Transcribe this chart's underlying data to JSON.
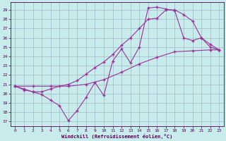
{
  "xlabel": "Windchill (Refroidissement éolien,°C)",
  "xlim": [
    -0.5,
    23.5
  ],
  "ylim": [
    16.5,
    29.8
  ],
  "yticks": [
    17,
    18,
    19,
    20,
    21,
    22,
    23,
    24,
    25,
    26,
    27,
    28,
    29
  ],
  "xticks": [
    0,
    1,
    2,
    3,
    4,
    5,
    6,
    7,
    8,
    9,
    10,
    11,
    12,
    13,
    14,
    15,
    16,
    17,
    18,
    19,
    20,
    21,
    22,
    23
  ],
  "bg_color": "#c8ecec",
  "grid_color": "#a0b8c8",
  "line_color": "#993399",
  "line1_x": [
    0,
    1,
    2,
    3,
    4,
    5,
    6,
    7,
    8,
    9,
    10,
    11,
    12,
    13,
    14,
    15,
    16,
    17,
    18,
    19,
    20,
    21,
    22,
    23
  ],
  "line1_y": [
    20.8,
    20.4,
    20.2,
    19.9,
    19.3,
    18.7,
    17.1,
    18.2,
    19.6,
    21.2,
    19.8,
    23.5,
    24.8,
    23.3,
    25.0,
    29.2,
    29.3,
    29.1,
    28.9,
    26.0,
    25.7,
    26.0,
    25.3,
    24.7
  ],
  "line2_x": [
    0,
    2,
    4,
    6,
    8,
    10,
    12,
    14,
    16,
    18,
    20,
    22,
    23
  ],
  "line2_y": [
    20.8,
    20.8,
    20.8,
    20.8,
    21.0,
    21.5,
    22.3,
    23.2,
    23.9,
    24.5,
    24.6,
    24.7,
    24.7
  ],
  "line3_x": [
    0,
    1,
    2,
    3,
    4,
    5,
    6,
    7,
    8,
    9,
    10,
    11,
    12,
    13,
    14,
    15,
    16,
    17,
    18,
    19,
    20,
    21,
    22,
    23
  ],
  "line3_y": [
    20.8,
    20.5,
    20.2,
    20.2,
    20.5,
    20.8,
    21.0,
    21.4,
    22.1,
    22.8,
    23.4,
    24.2,
    25.2,
    26.0,
    27.0,
    28.0,
    28.1,
    29.0,
    29.0,
    28.5,
    27.8,
    26.0,
    25.0,
    24.7
  ]
}
